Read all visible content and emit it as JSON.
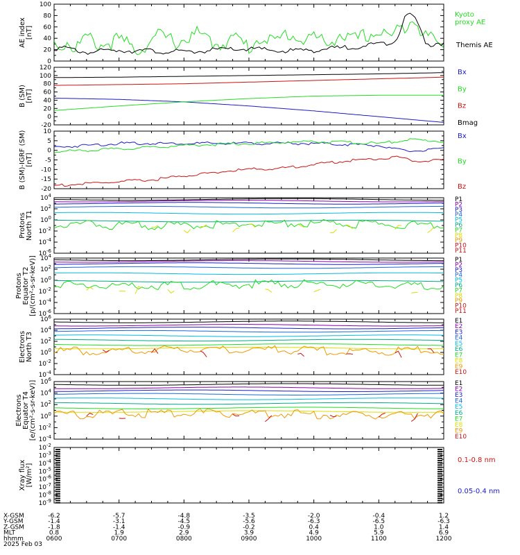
{
  "date_label": "2025 Feb 03",
  "colors": {
    "green": "#22dd22",
    "black": "#000000",
    "blue": "#1a1acc",
    "red": "#cc1111",
    "purple": "#8800aa",
    "cyan": "#00cccc",
    "teal": "#00aa88",
    "yellow": "#dddd00",
    "orange": "#ee9900"
  },
  "chart_data": [
    {
      "type": "line",
      "ylabel": [
        "AE index",
        "[nT]"
      ],
      "ylim": [
        0,
        100
      ],
      "yticks": [
        "0",
        "20",
        "40",
        "60",
        "80",
        "100"
      ],
      "series": [
        {
          "name": "Kyoto\nproxy AE",
          "color": "#22dd22",
          "x": [
            0,
            0.1,
            0.2,
            0.3,
            0.5,
            0.7,
            1.0,
            1.3,
            1.6,
            1.9,
            2.2,
            2.5,
            2.8,
            3.0,
            3.2,
            3.4,
            3.6,
            3.8,
            4.0,
            4.2,
            4.4,
            4.6,
            4.8,
            5.0,
            5.2,
            5.4,
            5.5,
            5.6,
            5.7,
            5.8,
            5.9,
            6.0
          ],
          "y": [
            40,
            32,
            42,
            28,
            48,
            35,
            44,
            26,
            52,
            40,
            55,
            36,
            48,
            30,
            52,
            38,
            57,
            44,
            50,
            36,
            55,
            42,
            52,
            58,
            50,
            70,
            84,
            78,
            45,
            55,
            32,
            38
          ]
        },
        {
          "name": "Themis AE",
          "color": "#000000",
          "x": [
            0,
            0.2,
            0.5,
            1.0,
            1.5,
            2.0,
            2.5,
            3.0,
            3.5,
            4.0,
            4.5,
            4.8,
            5.0,
            5.2,
            5.3,
            5.4,
            5.5,
            5.6,
            5.7,
            5.8,
            5.9,
            6.0
          ],
          "y": [
            26,
            24,
            18,
            22,
            20,
            18,
            22,
            24,
            20,
            22,
            26,
            30,
            32,
            36,
            48,
            80,
            86,
            68,
            40,
            30,
            36,
            32
          ]
        }
      ]
    },
    {
      "type": "line",
      "ylabel": [
        "B (SM)",
        "[nT]"
      ],
      "ylim": [
        -20,
        120
      ],
      "yticks": [
        "-20",
        "0",
        "20",
        "40",
        "60",
        "80",
        "100",
        "120"
      ],
      "series": [
        {
          "name": "Bx",
          "color": "#1a1acc",
          "x": [
            0,
            1,
            2,
            3,
            4,
            5,
            6
          ],
          "y": [
            45,
            42,
            36,
            26,
            14,
            0,
            -14
          ]
        },
        {
          "name": "By",
          "color": "#22dd22",
          "x": [
            0,
            1,
            2,
            3,
            4,
            5,
            6
          ],
          "y": [
            15,
            26,
            36,
            44,
            50,
            52,
            52
          ]
        },
        {
          "name": "Bz",
          "color": "#cc1111",
          "x": [
            0,
            1,
            2,
            3,
            4,
            5,
            6
          ],
          "y": [
            76,
            78,
            80,
            84,
            88,
            92,
            96
          ]
        },
        {
          "name": "Bmag",
          "color": "#000000",
          "x": [
            0,
            1,
            2,
            3,
            4,
            5,
            6
          ],
          "y": [
            95,
            96,
            98,
            100,
            102,
            104,
            107
          ]
        }
      ]
    },
    {
      "type": "line",
      "ylabel": [
        "B (SM)-IGRF (SM)",
        "[nT]"
      ],
      "ylim": [
        -20,
        10
      ],
      "yticks": [
        "-20",
        "-15",
        "-10",
        "-5",
        "0",
        "5",
        "10"
      ],
      "series": [
        {
          "name": "Bx",
          "color": "#1a1acc",
          "x": [
            0,
            0.5,
            1,
            2,
            3,
            4,
            5,
            5.2,
            5.5,
            6
          ],
          "y": [
            2,
            3,
            4,
            4,
            4,
            4,
            3,
            1,
            0,
            1
          ]
        },
        {
          "name": "By",
          "color": "#22dd22",
          "x": [
            0,
            0.5,
            1,
            2,
            3,
            4,
            5,
            5.5,
            6
          ],
          "y": [
            -0.5,
            0.5,
            1,
            3,
            4,
            5,
            4,
            6,
            5
          ]
        },
        {
          "name": "Bz",
          "color": "#cc1111",
          "x": [
            0,
            0.5,
            1,
            1.5,
            2,
            2.5,
            3,
            3.5,
            4,
            4.5,
            5,
            5.3,
            5.5,
            6
          ],
          "y": [
            -18,
            -17,
            -16,
            -15,
            -13,
            -11,
            -9.5,
            -9,
            -7,
            -5,
            -4,
            -3,
            -5,
            -5
          ]
        }
      ]
    },
    {
      "type": "line",
      "log": true,
      "ylabel": [
        "Protons",
        "North T1"
      ],
      "yticks": [
        "10^-6",
        "10^-4",
        "10^-2",
        "10^0",
        "10^2",
        "10^4"
      ],
      "series_names": [
        "P1",
        "P2",
        "P3",
        "P4",
        "P5",
        "P6",
        "P7",
        "P8",
        "P9",
        "P10",
        "P11"
      ]
    },
    {
      "type": "line",
      "log": true,
      "ylabel": [
        "Protons",
        "Equator T2",
        "[p/(cm^2-s-sr-keV)]"
      ],
      "yticks": [
        "10^-6",
        "10^-4",
        "10^-2",
        "10^0",
        "10^2",
        "10^4"
      ],
      "series_names": [
        "P1",
        "P2",
        "P3",
        "P4",
        "P5",
        "P6",
        "P7",
        "P8",
        "P9",
        "P10",
        "P11"
      ]
    },
    {
      "type": "line",
      "log": true,
      "ylabel": [
        "Electrons",
        "North T3"
      ],
      "yticks": [
        "10^-4",
        "10^-2",
        "10^0",
        "10^2",
        "10^4",
        "10^6"
      ],
      "series_names": [
        "E1",
        "E2",
        "E3",
        "E4",
        "E5",
        "E6",
        "E7",
        "E8",
        "E9",
        "E10"
      ]
    },
    {
      "type": "line",
      "log": true,
      "ylabel": [
        "Electrons",
        "Equator T4",
        "[e/(cm^2-s-sr-keV)]"
      ],
      "yticks": [
        "10^-4",
        "10^-2",
        "10^0",
        "10^2",
        "10^4",
        "10^6"
      ],
      "series_names": [
        "E1",
        "E2",
        "E3",
        "E4",
        "E5",
        "E6",
        "E7",
        "E8",
        "E9",
        "E10"
      ]
    },
    {
      "type": "line",
      "log": true,
      "ylabel": [
        "Xray flux",
        "[W/m^2]"
      ],
      "yticks": [
        "10^-9",
        "10^-8",
        "10^-7",
        "10^-6",
        "10^-5",
        "10^-4",
        "10^-3",
        "10^-2"
      ],
      "series": [
        {
          "name": "0.1-0.8 nm",
          "color": "#cc1111"
        },
        {
          "name": "0.05-0.4 nm",
          "color": "#1a1acc"
        }
      ]
    }
  ],
  "orbit_table": {
    "row_labels": [
      "X-GSM",
      "Y-GSM",
      "Z-GSM",
      "MLT",
      "hhmm"
    ],
    "columns": [
      [
        "-6.2",
        "-1.4",
        "-1.8",
        "0.8",
        "0600"
      ],
      [
        "-5.7",
        "-3.1",
        "-1.4",
        "1.9",
        "0700"
      ],
      [
        "-4.8",
        "-4.5",
        "-0.9",
        "2.9",
        "0800"
      ],
      [
        "-3.5",
        "-5.6",
        "-0.2",
        "3.9",
        "0900"
      ],
      [
        "-2.0",
        "-6.3",
        "0.4",
        "4.9",
        "1000"
      ],
      [
        "-0.4",
        "-6.5",
        "1.0",
        "5.9",
        "1100"
      ],
      [
        "1.2",
        "-6.3",
        "1.4",
        "6.9",
        "1200"
      ]
    ]
  }
}
